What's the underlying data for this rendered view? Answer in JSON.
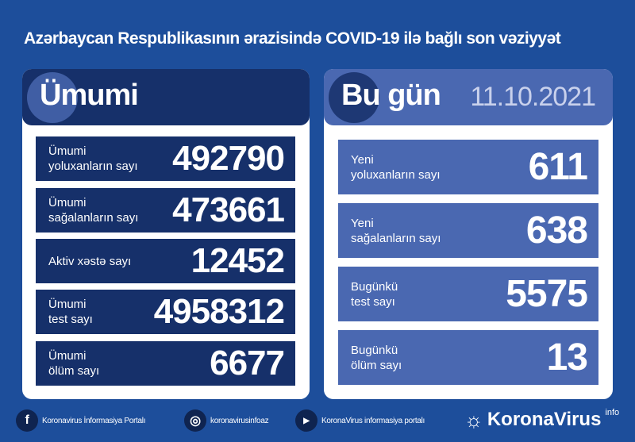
{
  "title": "Azərbaycan Respublikasının ərazisində COVID-19 ilə bağlı son vəziyyət",
  "left": {
    "heading": "Ümumi",
    "items": [
      {
        "label1": "Ümumi",
        "label2": "yoluxanların sayı",
        "value": "492790"
      },
      {
        "label1": "Ümumi",
        "label2": "sağalanların sayı",
        "value": "473661"
      },
      {
        "label1": "Aktiv xəstə sayı",
        "label2": "",
        "value": "12452"
      },
      {
        "label1": "Ümumi",
        "label2": "test sayı",
        "value": "4958312"
      },
      {
        "label1": "Ümumi",
        "label2": "ölüm sayı",
        "value": "6677"
      }
    ]
  },
  "right": {
    "heading": "Bu gün",
    "date": "11.10.2021",
    "items": [
      {
        "label1": "Yeni",
        "label2": "yoluxanların sayı",
        "value": "611"
      },
      {
        "label1": "Yeni",
        "label2": "sağalanların sayı",
        "value": "638"
      },
      {
        "label1": "Bugünkü",
        "label2": "test sayı",
        "value": "5575"
      },
      {
        "label1": "Bugünkü",
        "label2": "ölüm sayı",
        "value": "13"
      }
    ]
  },
  "footer": {
    "facebook": "Koronavirus İnformasiya Portalı",
    "instagram": "koronavirusinfoaz",
    "youtube": "KoronaVirus informasiya portalı",
    "logo": "KoronaVirus",
    "logo_sup": "info"
  },
  "colors": {
    "background": "#1d4e9b",
    "dark_box": "#16306a",
    "light_box": "#4a68b1"
  }
}
